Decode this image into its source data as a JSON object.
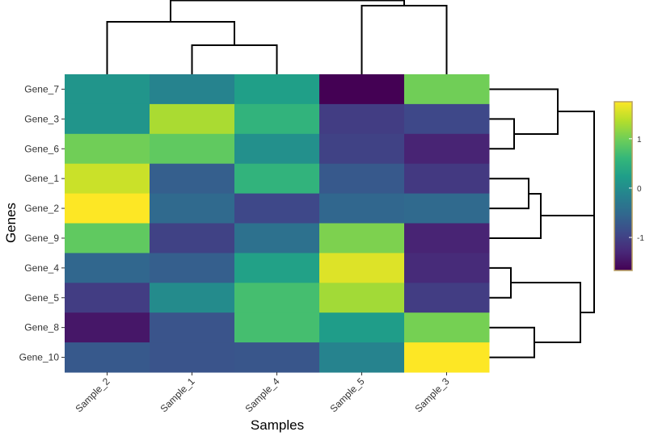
{
  "chart_data": {
    "type": "heatmap",
    "x_label": "Samples",
    "y_label": "Genes",
    "x_categories": [
      "Sample_2",
      "Sample_1",
      "Sample_4",
      "Sample_5",
      "Sample_3"
    ],
    "y_categories": [
      "Gene_7",
      "Gene_3",
      "Gene_6",
      "Gene_1",
      "Gene_2",
      "Gene_9",
      "Gene_4",
      "Gene_5",
      "Gene_8",
      "Gene_10"
    ],
    "values": [
      [
        0.11,
        -0.13,
        0.25,
        -1.67,
        1.0
      ],
      [
        0.11,
        1.31,
        0.55,
        -1.05,
        -0.92
      ],
      [
        1.0,
        0.9,
        0.04,
        -0.99,
        -1.33
      ],
      [
        1.48,
        -0.64,
        0.55,
        -0.71,
        -1.09
      ],
      [
        1.75,
        -0.5,
        -0.92,
        -0.54,
        -0.5
      ],
      [
        0.9,
        -0.99,
        -0.4,
        1.07,
        -1.33
      ],
      [
        -0.54,
        -0.64,
        0.28,
        1.58,
        -1.26
      ],
      [
        -1.05,
        -0.03,
        0.72,
        1.27,
        -1.05
      ],
      [
        -1.46,
        -0.78,
        0.72,
        0.21,
        1.03
      ],
      [
        -0.71,
        -0.78,
        -0.75,
        -0.13,
        1.75
      ]
    ],
    "colorscale": "viridis",
    "zlim": [
      -1.67,
      1.75
    ],
    "zticks": [
      1,
      0,
      -1
    ]
  }
}
